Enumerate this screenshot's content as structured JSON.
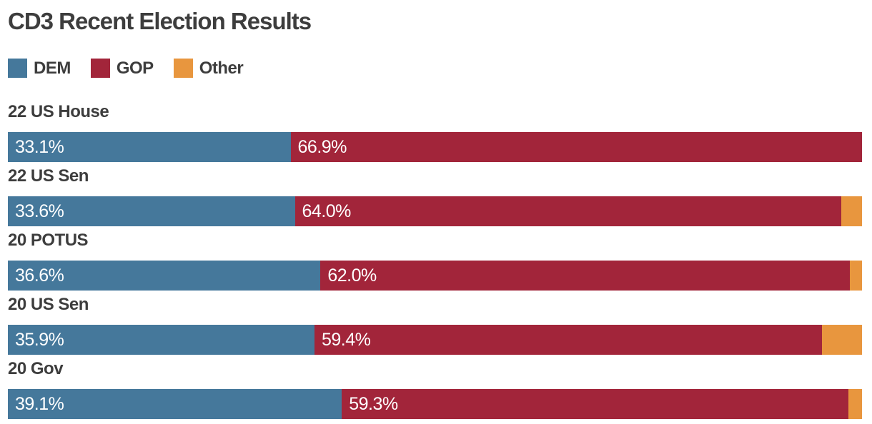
{
  "title": "CD3 Recent Election Results",
  "colors": {
    "dem": "#45789B",
    "gop": "#A2253A",
    "other": "#E8963E",
    "heading_text": "#3D3D3D",
    "value_text": "#FFFFFF",
    "background": "#FFFFFF"
  },
  "legend": {
    "dem_label": "DEM",
    "gop_label": "GOP",
    "other_label": "Other"
  },
  "chart_data": {
    "type": "bar",
    "orientation": "horizontal-stacked",
    "title": "CD3 Recent Election Results",
    "categories": [
      "22 US House",
      "22 US Sen",
      "20 POTUS",
      "20 US Sen",
      "20 Gov"
    ],
    "series": [
      {
        "name": "DEM",
        "color": "#45789B",
        "values": [
          33.1,
          33.6,
          36.6,
          35.9,
          39.1
        ]
      },
      {
        "name": "GOP",
        "color": "#A2253A",
        "values": [
          66.9,
          64.0,
          62.0,
          59.4,
          59.3
        ]
      },
      {
        "name": "Other",
        "color": "#E8963E",
        "values": [
          0.0,
          2.4,
          1.4,
          4.7,
          1.6
        ]
      }
    ],
    "value_labels_shown_for": [
      "DEM",
      "GOP"
    ],
    "xlim": [
      0,
      100
    ],
    "grid": false,
    "legend_position": "top-left"
  },
  "rows": [
    {
      "label": "22 US House",
      "dem": {
        "pct": 33.1,
        "label": "33.1%"
      },
      "gop": {
        "pct": 66.9,
        "label": "66.9%"
      },
      "other": {
        "pct": 0.0
      }
    },
    {
      "label": "22 US Sen",
      "dem": {
        "pct": 33.6,
        "label": "33.6%"
      },
      "gop": {
        "pct": 64.0,
        "label": "64.0%"
      },
      "other": {
        "pct": 2.4
      }
    },
    {
      "label": "20 POTUS",
      "dem": {
        "pct": 36.6,
        "label": "36.6%"
      },
      "gop": {
        "pct": 62.0,
        "label": "62.0%"
      },
      "other": {
        "pct": 1.4
      }
    },
    {
      "label": "20 US Sen",
      "dem": {
        "pct": 35.9,
        "label": "35.9%"
      },
      "gop": {
        "pct": 59.4,
        "label": "59.4%"
      },
      "other": {
        "pct": 4.7
      }
    },
    {
      "label": "20 Gov",
      "dem": {
        "pct": 39.1,
        "label": "39.1%"
      },
      "gop": {
        "pct": 59.3,
        "label": "59.3%"
      },
      "other": {
        "pct": 1.6
      }
    }
  ]
}
